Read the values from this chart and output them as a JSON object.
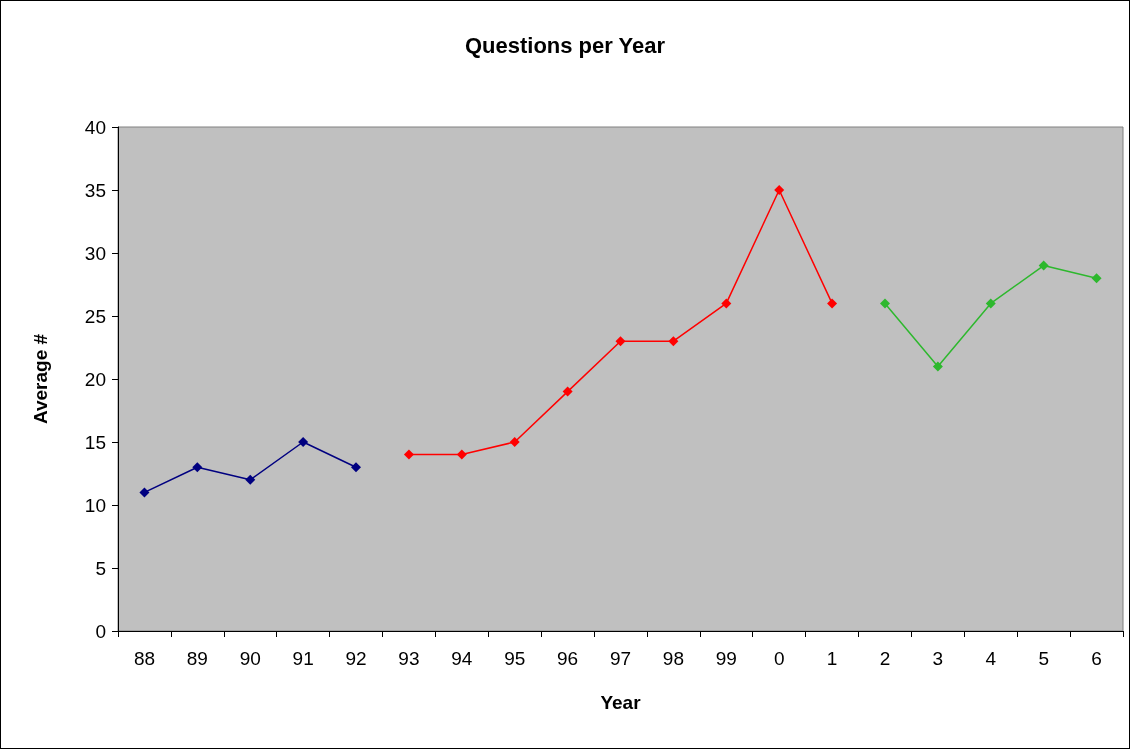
{
  "chart_data": {
    "type": "line",
    "title": "Questions per Year",
    "xlabel": "Year",
    "ylabel": "Average #",
    "categories": [
      "88",
      "89",
      "90",
      "91",
      "92",
      "93",
      "94",
      "95",
      "96",
      "97",
      "98",
      "99",
      "0",
      "1",
      "2",
      "3",
      "4",
      "5",
      "6"
    ],
    "series": [
      {
        "color": "#000080",
        "values": [
          11,
          13,
          12,
          15,
          13,
          null,
          null,
          null,
          null,
          null,
          null,
          null,
          null,
          null,
          null,
          null,
          null,
          null,
          null
        ]
      },
      {
        "color": "#ff0000",
        "values": [
          null,
          null,
          null,
          null,
          null,
          14,
          14,
          15,
          19,
          23,
          23,
          26,
          35,
          26,
          null,
          null,
          null,
          null,
          null
        ]
      },
      {
        "color": "#2db82d",
        "values": [
          null,
          null,
          null,
          null,
          null,
          null,
          null,
          null,
          null,
          null,
          null,
          null,
          null,
          null,
          26,
          21,
          26,
          29,
          28
        ]
      }
    ],
    "ylim": [
      0,
      40
    ],
    "yticks": [
      0,
      5,
      10,
      15,
      20,
      25,
      30,
      35,
      40
    ],
    "marker": "diamond",
    "line_style": "solid"
  }
}
